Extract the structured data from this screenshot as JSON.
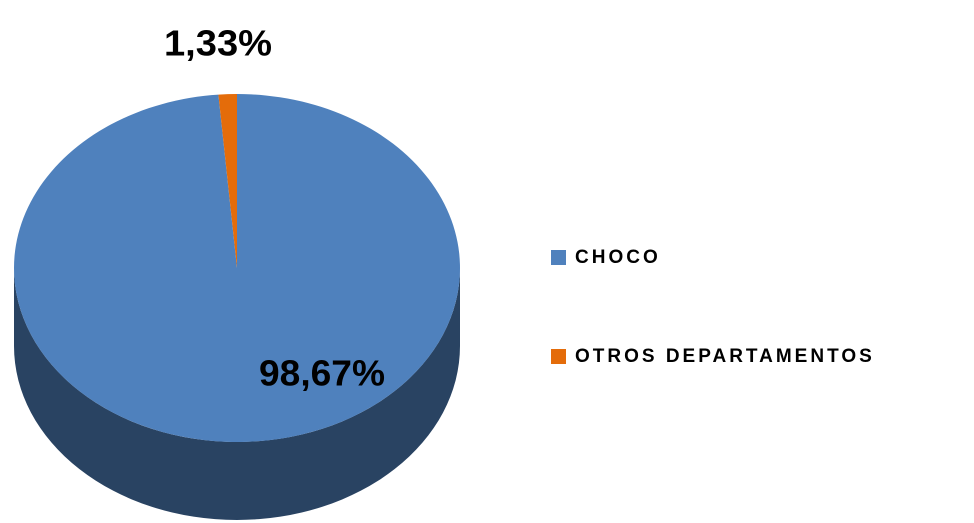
{
  "chart_data": {
    "type": "pie",
    "categories": [
      "CHOCO",
      "OTROS DEPARTAMENTOS"
    ],
    "values": [
      98.67,
      1.33
    ],
    "value_labels": [
      "98,67%",
      "1,33%"
    ],
    "colors": [
      "#4f81bd",
      "#e46c0a"
    ],
    "legend": "right"
  }
}
